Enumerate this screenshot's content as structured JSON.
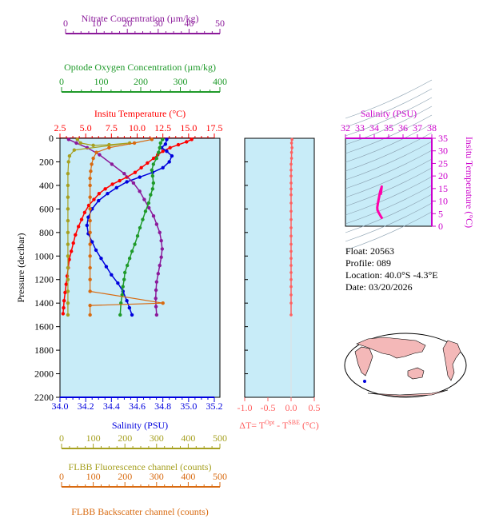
{
  "colors": {
    "nitrate": "#8b1a9a",
    "oxygen": "#1f9a2a",
    "temperature": "#ff0000",
    "salinity": "#0000dd",
    "fluorescence": "#a6a020",
    "backscatter": "#d86a10",
    "delta_t": "#ff6060",
    "ts_salinity_axis": "#cc00cc",
    "panel_bg": "#c8ecf8",
    "map_land": "#f4b8b8"
  },
  "info": {
    "float_line": "Float:  20563",
    "profile_line": "Profile:  089",
    "location_line": "Location:  40.0°S  -4.3°E",
    "date_line": "Date:  03/20/2026"
  },
  "chart_data": [
    {
      "type": "line",
      "name": "main-profile",
      "ylabel": "Pressure (decibar)",
      "ylim": [
        2200,
        0
      ],
      "yticks": [
        "0",
        "200",
        "400",
        "600",
        "800",
        "1000",
        "1200",
        "1400",
        "1600",
        "1800",
        "2000",
        "2200"
      ],
      "axes": {
        "nitrate": {
          "label": "Nitrate Concentration (µm/kg)",
          "ticks": [
            "0",
            "10",
            "20",
            "30",
            "40",
            "50"
          ],
          "range": [
            0,
            50
          ]
        },
        "oxygen": {
          "label": "Optode Oxygen Concentration (µm/kg)",
          "ticks": [
            "0",
            "100",
            "200",
            "300",
            "400"
          ],
          "range": [
            0,
            400
          ]
        },
        "temperature": {
          "label": "Insitu Temperature (°C)",
          "ticks": [
            "2.5",
            "5.0",
            "7.5",
            "10.0",
            "12.5",
            "15.0",
            "17.5"
          ],
          "range": [
            2.5,
            17.5
          ]
        },
        "salinity": {
          "label": "Salinity (PSU)",
          "ticks": [
            "34.0",
            "34.2",
            "34.4",
            "34.6",
            "34.8",
            "35.0",
            "35.2"
          ],
          "range": [
            34.0,
            35.2
          ]
        },
        "fluorescence": {
          "label": "FLBB Fluorescence channel (counts)",
          "ticks": [
            "0",
            "100",
            "200",
            "300",
            "400",
            "500"
          ],
          "range": [
            0,
            500
          ]
        },
        "backscatter": {
          "label": "FLBB Backscatter channel (counts)",
          "ticks": [
            "0",
            "100",
            "200",
            "300",
            "400",
            "500"
          ],
          "range": [
            0,
            500
          ]
        }
      },
      "series": [
        {
          "key": "temperature",
          "points": [
            [
              15.3,
              10
            ],
            [
              14.8,
              30
            ],
            [
              14.0,
              55
            ],
            [
              13.2,
              80
            ],
            [
              12.5,
              110
            ],
            [
              12.0,
              140
            ],
            [
              11.6,
              170
            ],
            [
              11.0,
              210
            ],
            [
              10.4,
              250
            ],
            [
              9.8,
              290
            ],
            [
              9.0,
              330
            ],
            [
              8.3,
              360
            ],
            [
              7.6,
              390
            ],
            [
              6.9,
              430
            ],
            [
              6.3,
              470
            ],
            [
              5.8,
              520
            ],
            [
              5.3,
              570
            ],
            [
              4.9,
              630
            ],
            [
              4.6,
              690
            ],
            [
              4.3,
              750
            ],
            [
              4.0,
              820
            ],
            [
              3.8,
              890
            ],
            [
              3.6,
              960
            ],
            [
              3.4,
              1030
            ],
            [
              3.3,
              1100
            ],
            [
              3.2,
              1170
            ],
            [
              3.1,
              1240
            ],
            [
              3.0,
              1310
            ],
            [
              2.9,
              1380
            ],
            [
              2.85,
              1440
            ],
            [
              2.8,
              1490
            ]
          ]
        },
        {
          "key": "salinity",
          "points": [
            [
              34.83,
              10
            ],
            [
              34.82,
              50
            ],
            [
              34.79,
              80
            ],
            [
              34.83,
              110
            ],
            [
              34.87,
              150
            ],
            [
              34.85,
              200
            ],
            [
              34.8,
              250
            ],
            [
              34.72,
              290
            ],
            [
              34.62,
              330
            ],
            [
              34.52,
              370
            ],
            [
              34.44,
              420
            ],
            [
              34.37,
              470
            ],
            [
              34.3,
              530
            ],
            [
              34.25,
              600
            ],
            [
              34.22,
              670
            ],
            [
              34.21,
              740
            ],
            [
              34.22,
              810
            ],
            [
              34.25,
              880
            ],
            [
              34.28,
              950
            ],
            [
              34.32,
              1020
            ],
            [
              34.36,
              1090
            ],
            [
              34.4,
              1160
            ],
            [
              34.45,
              1230
            ],
            [
              34.49,
              1300
            ],
            [
              34.52,
              1380
            ],
            [
              34.54,
              1440
            ],
            [
              34.56,
              1500
            ]
          ]
        },
        {
          "key": "nitrate",
          "points": [
            [
              1.0,
              10
            ],
            [
              3.5,
              40
            ],
            [
              7.0,
              80
            ],
            [
              11.0,
              140
            ],
            [
              15.0,
              220
            ],
            [
              19.0,
              300
            ],
            [
              22.0,
              380
            ],
            [
              24.0,
              450
            ],
            [
              25.5,
              520
            ],
            [
              27.0,
              590
            ],
            [
              28.5,
              660
            ],
            [
              29.5,
              730
            ],
            [
              30.5,
              800
            ],
            [
              31.0,
              870
            ],
            [
              31.3,
              940
            ],
            [
              31.0,
              1010
            ],
            [
              30.5,
              1080
            ],
            [
              30.0,
              1150
            ],
            [
              29.5,
              1220
            ],
            [
              29.3,
              1290
            ],
            [
              29.2,
              1360
            ],
            [
              29.3,
              1430
            ],
            [
              29.5,
              1500
            ]
          ]
        },
        {
          "key": "oxygen",
          "points": [
            [
              255,
              10
            ],
            [
              250,
              40
            ],
            [
              248,
              80
            ],
            [
              245,
              120
            ],
            [
              240,
              170
            ],
            [
              232,
              220
            ],
            [
              228,
              270
            ],
            [
              230,
              320
            ],
            [
              232,
              380
            ],
            [
              230,
              430
            ],
            [
              225,
              480
            ],
            [
              220,
              550
            ],
            [
              212,
              620
            ],
            [
              205,
              690
            ],
            [
              198,
              760
            ],
            [
              192,
              830
            ],
            [
              185,
              900
            ],
            [
              178,
              960
            ],
            [
              172,
              1020
            ],
            [
              166,
              1080
            ],
            [
              160,
              1140
            ],
            [
              158,
              1200
            ],
            [
              155,
              1260
            ],
            [
              153,
              1330
            ],
            [
              150,
              1400
            ],
            [
              148,
              1500
            ]
          ]
        },
        {
          "key": "fluorescence",
          "points": [
            [
              50,
              10
            ],
            [
              60,
              40
            ],
            [
              100,
              60
            ],
            [
              150,
              55
            ],
            [
              215,
              40
            ],
            [
              40,
              100
            ],
            [
              25,
              150
            ],
            [
              22,
              200
            ],
            [
              20,
              300
            ],
            [
              20,
              400
            ],
            [
              20,
              500
            ],
            [
              20,
              600
            ],
            [
              20,
              700
            ],
            [
              20,
              800
            ],
            [
              20,
              900
            ],
            [
              20,
              1000
            ],
            [
              20,
              1100
            ],
            [
              20,
              1200
            ],
            [
              20,
              1300
            ],
            [
              20,
              1400
            ],
            [
              20,
              1500
            ]
          ]
        },
        {
          "key": "backscatter",
          "points": [
            [
              285,
              10
            ],
            [
              230,
              40
            ],
            [
              150,
              80
            ],
            [
              110,
              120
            ],
            [
              100,
              170
            ],
            [
              95,
              220
            ],
            [
              92,
              280
            ],
            [
              90,
              340
            ],
            [
              90,
              400
            ],
            [
              90,
              500
            ],
            [
              90,
              600
            ],
            [
              90,
              700
            ],
            [
              90,
              800
            ],
            [
              90,
              900
            ],
            [
              90,
              1000
            ],
            [
              90,
              1100
            ],
            [
              90,
              1200
            ],
            [
              90,
              1300
            ],
            [
              320,
              1400
            ],
            [
              90,
              1420
            ],
            [
              90,
              1500
            ]
          ]
        }
      ]
    },
    {
      "type": "scatter",
      "name": "delta-temperature",
      "xlabel": "ΔT= T",
      "xlabel_sup1": "Opt",
      "xlabel_mid": " - T",
      "xlabel_sup2": "SBE",
      "xlabel_unit": " (°C)",
      "xticks": [
        "-1.0",
        "-0.5",
        "0.0",
        "0.5"
      ],
      "xlim": [
        -1.0,
        0.5
      ],
      "ylim": [
        2200,
        0
      ],
      "points": [
        [
          0.02,
          10
        ],
        [
          0.01,
          40
        ],
        [
          0.02,
          80
        ],
        [
          0.01,
          120
        ],
        [
          0.01,
          170
        ],
        [
          0.0,
          220
        ],
        [
          0.0,
          270
        ],
        [
          0.0,
          320
        ],
        [
          0.0,
          380
        ],
        [
          0.0,
          430
        ],
        [
          0.0,
          480
        ],
        [
          0.0,
          550
        ],
        [
          0.0,
          620
        ],
        [
          0.0,
          690
        ],
        [
          0.0,
          760
        ],
        [
          0.0,
          830
        ],
        [
          0.0,
          900
        ],
        [
          0.0,
          960
        ],
        [
          0.0,
          1020
        ],
        [
          0.0,
          1080
        ],
        [
          0.0,
          1140
        ],
        [
          0.0,
          1200
        ],
        [
          0.0,
          1260
        ],
        [
          0.0,
          1330
        ],
        [
          0.0,
          1400
        ],
        [
          0.0,
          1500
        ]
      ]
    },
    {
      "type": "line",
      "name": "ts-diagram",
      "title": "Salinity (PSU)",
      "ylabel": "Insitu Temperature (°C)",
      "xticks": [
        "32",
        "33",
        "34",
        "35",
        "36",
        "37",
        "38"
      ],
      "xlim": [
        32,
        38
      ],
      "yticks": [
        "0",
        "5",
        "10",
        "15",
        "20",
        "25",
        "30",
        "35"
      ],
      "ylim": [
        0,
        35
      ],
      "points": [
        [
          34.56,
          3.0
        ],
        [
          34.5,
          3.5
        ],
        [
          34.4,
          4.5
        ],
        [
          34.3,
          5.5
        ],
        [
          34.22,
          6.5
        ],
        [
          34.21,
          7.5
        ],
        [
          34.25,
          9.0
        ],
        [
          34.3,
          10.5
        ],
        [
          34.35,
          12.0
        ],
        [
          34.4,
          13.5
        ],
        [
          34.45,
          14.5
        ],
        [
          34.5,
          15.3
        ],
        [
          34.52,
          15.8
        ],
        [
          34.48,
          14.0
        ],
        [
          34.45,
          12.5
        ]
      ]
    }
  ]
}
